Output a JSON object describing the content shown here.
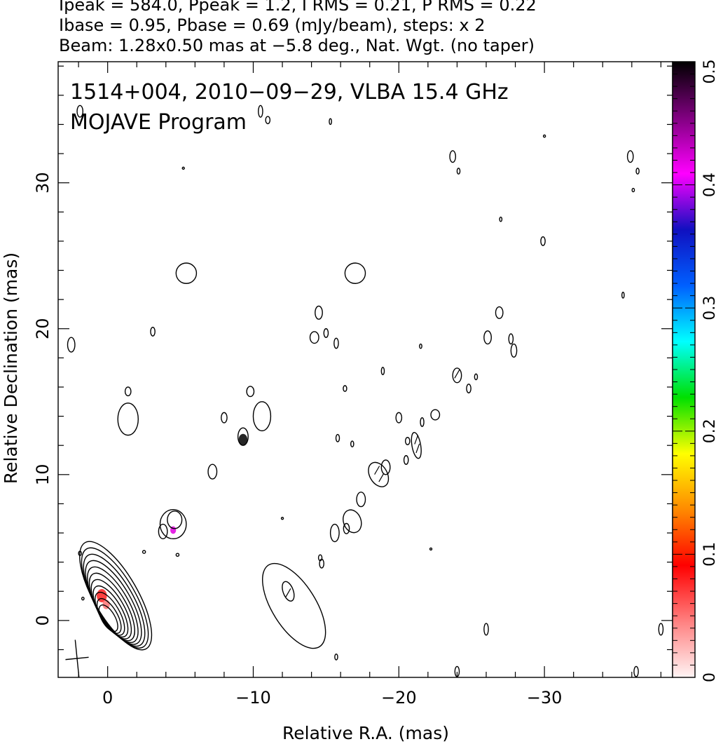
{
  "header": {
    "line1": "Ipeak = 584.0, Ppeak = 1.2, I RMS = 0.21, P RMS = 0.22",
    "line2": "Ibase = 0.95, Pbase = 0.69 (mJy/beam), steps: x 2",
    "line3": "Beam: 1.28x0.50 mas at −5.8 deg., Nat. Wgt. (no taper)"
  },
  "chart_data": {
    "type": "heatmap",
    "title": "1514+004, 2010−09−29, VLBA 15.4 GHz",
    "subtitle": "MOJAVE Program",
    "xlabel": "Relative R.A. (mas)",
    "ylabel": "Relative Declination (mas)",
    "xlim": [
      3.4,
      -38.8
    ],
    "ylim": [
      -3.9,
      38.3
    ],
    "x_ticks": [
      0,
      -10,
      -20,
      -30
    ],
    "x_tick_labels": [
      "0",
      "−10",
      "−20",
      "−30"
    ],
    "y_ticks": [
      0,
      10,
      20,
      30
    ],
    "y_tick_labels": [
      "0",
      "10",
      "20",
      "30"
    ],
    "colorbar": {
      "min": 0,
      "max": 0.5,
      "ticks": [
        0,
        0.1,
        0.2,
        0.3,
        0.4,
        0.5
      ],
      "tick_labels": [
        "0",
        "0.1",
        "0.2",
        "0.3",
        "0.4",
        "0.5"
      ],
      "stops": [
        "#fff4f4",
        "#ff8080",
        "#ff0000",
        "#ff8a00",
        "#ffff00",
        "#00e000",
        "#00ffff",
        "#0060ff",
        "#1010c0",
        "#ff00ff",
        "#800080",
        "#000000"
      ]
    },
    "core": {
      "x": 0.0,
      "y": 0.0,
      "levels": 11,
      "pa_deg": -30
    },
    "features": [
      {
        "x": -12.8,
        "y": 1.0,
        "rx": 1.5,
        "ry": 3.3,
        "rot": -32
      },
      {
        "x": -12.4,
        "y": 2.0,
        "rx": 0.35,
        "ry": 0.7,
        "rot": -20
      },
      {
        "x": -4.6,
        "y": 6.9,
        "rx": 0.5,
        "ry": 0.6,
        "rot": 0
      },
      {
        "x": -4.5,
        "y": 6.6,
        "rx": 0.9,
        "ry": 1.0,
        "rot": 0
      },
      {
        "x": -3.8,
        "y": 6.1,
        "rx": 0.3,
        "ry": 0.5,
        "rot": 0
      },
      {
        "x": -7.2,
        "y": 10.2,
        "rx": 0.3,
        "ry": 0.5,
        "rot": 0
      },
      {
        "x": -9.3,
        "y": 12.6,
        "rx": 0.35,
        "ry": 0.6,
        "rot": 0
      },
      {
        "x": -10.6,
        "y": 14.0,
        "rx": 0.6,
        "ry": 1.0,
        "rot": 0
      },
      {
        "x": -9.8,
        "y": 15.7,
        "rx": 0.25,
        "ry": 0.35,
        "rot": 0
      },
      {
        "x": -8.0,
        "y": 13.9,
        "rx": 0.2,
        "ry": 0.35,
        "rot": 0
      },
      {
        "x": -1.4,
        "y": 13.8,
        "rx": 0.7,
        "ry": 1.1,
        "rot": 0
      },
      {
        "x": -1.4,
        "y": 15.7,
        "rx": 0.2,
        "ry": 0.3,
        "rot": 0
      },
      {
        "x": 2.5,
        "y": 18.9,
        "rx": 0.25,
        "ry": 0.5,
        "rot": 0
      },
      {
        "x": -3.1,
        "y": 19.8,
        "rx": 0.15,
        "ry": 0.3,
        "rot": 0
      },
      {
        "x": -5.4,
        "y": 23.8,
        "rx": 0.7,
        "ry": 0.7,
        "rot": 0
      },
      {
        "x": -17.0,
        "y": 23.8,
        "rx": 0.7,
        "ry": 0.7,
        "rot": 0
      },
      {
        "x": -14.5,
        "y": 21.1,
        "rx": 0.25,
        "ry": 0.45,
        "rot": 0
      },
      {
        "x": -14.2,
        "y": 19.4,
        "rx": 0.3,
        "ry": 0.4,
        "rot": 0
      },
      {
        "x": -15.0,
        "y": 19.7,
        "rx": 0.15,
        "ry": 0.3,
        "rot": 0
      },
      {
        "x": -15.7,
        "y": 19.0,
        "rx": 0.15,
        "ry": 0.35,
        "rot": 0
      },
      {
        "x": -16.3,
        "y": 15.9,
        "rx": 0.12,
        "ry": 0.2,
        "rot": 0
      },
      {
        "x": -15.8,
        "y": 12.5,
        "rx": 0.12,
        "ry": 0.25,
        "rot": 0
      },
      {
        "x": -16.8,
        "y": 12.1,
        "rx": 0.1,
        "ry": 0.2,
        "rot": 0
      },
      {
        "x": -17.4,
        "y": 8.3,
        "rx": 0.3,
        "ry": 0.5,
        "rot": 0
      },
      {
        "x": -16.8,
        "y": 6.8,
        "rx": 0.6,
        "ry": 0.8,
        "rot": -20
      },
      {
        "x": -16.4,
        "y": 6.3,
        "rx": 0.2,
        "ry": 0.35,
        "rot": 0
      },
      {
        "x": -15.6,
        "y": 6.0,
        "rx": 0.3,
        "ry": 0.6,
        "rot": 0
      },
      {
        "x": -14.6,
        "y": 4.3,
        "rx": 0.12,
        "ry": 0.2,
        "rot": 0
      },
      {
        "x": -14.7,
        "y": 3.9,
        "rx": 0.15,
        "ry": 0.3,
        "rot": 0
      },
      {
        "x": -18.6,
        "y": 10.0,
        "rx": 0.6,
        "ry": 0.9,
        "rot": -30
      },
      {
        "x": -19.1,
        "y": 10.5,
        "rx": 0.3,
        "ry": 0.5,
        "rot": 0
      },
      {
        "x": -20.0,
        "y": 13.9,
        "rx": 0.2,
        "ry": 0.35,
        "rot": 0
      },
      {
        "x": -20.6,
        "y": 12.3,
        "rx": 0.15,
        "ry": 0.25,
        "rot": 0
      },
      {
        "x": -21.2,
        "y": 12.0,
        "rx": 0.3,
        "ry": 0.9,
        "rot": -10
      },
      {
        "x": -21.6,
        "y": 13.6,
        "rx": 0.12,
        "ry": 0.3,
        "rot": 0
      },
      {
        "x": -20.5,
        "y": 11.0,
        "rx": 0.15,
        "ry": 0.3,
        "rot": 0
      },
      {
        "x": -22.5,
        "y": 14.1,
        "rx": 0.3,
        "ry": 0.35,
        "rot": 0
      },
      {
        "x": -24.0,
        "y": 16.8,
        "rx": 0.3,
        "ry": 0.5,
        "rot": 0
      },
      {
        "x": -24.8,
        "y": 15.9,
        "rx": 0.15,
        "ry": 0.3,
        "rot": 0
      },
      {
        "x": -25.3,
        "y": 16.7,
        "rx": 0.1,
        "ry": 0.2,
        "rot": 0
      },
      {
        "x": -26.1,
        "y": 19.4,
        "rx": 0.25,
        "ry": 0.45,
        "rot": 0
      },
      {
        "x": -26.9,
        "y": 21.1,
        "rx": 0.25,
        "ry": 0.4,
        "rot": 0
      },
      {
        "x": -27.7,
        "y": 19.3,
        "rx": 0.15,
        "ry": 0.35,
        "rot": 0
      },
      {
        "x": -27.9,
        "y": 18.5,
        "rx": 0.2,
        "ry": 0.45,
        "rot": 0
      },
      {
        "x": -21.5,
        "y": 18.8,
        "rx": 0.08,
        "ry": 0.15,
        "rot": 0
      },
      {
        "x": -18.9,
        "y": 17.1,
        "rx": 0.1,
        "ry": 0.25,
        "rot": 0
      },
      {
        "x": -23.7,
        "y": 31.8,
        "rx": 0.2,
        "ry": 0.4,
        "rot": 0
      },
      {
        "x": -24.1,
        "y": 30.8,
        "rx": 0.1,
        "ry": 0.2,
        "rot": 0
      },
      {
        "x": -27.0,
        "y": 27.5,
        "rx": 0.08,
        "ry": 0.15,
        "rot": 0
      },
      {
        "x": -29.9,
        "y": 26.0,
        "rx": 0.15,
        "ry": 0.3,
        "rot": 0
      },
      {
        "x": -35.9,
        "y": 31.8,
        "rx": 0.2,
        "ry": 0.4,
        "rot": 0
      },
      {
        "x": -36.4,
        "y": 30.8,
        "rx": 0.1,
        "ry": 0.2,
        "rot": 0
      },
      {
        "x": -36.1,
        "y": 29.5,
        "rx": 0.08,
        "ry": 0.12,
        "rot": 0
      },
      {
        "x": -35.4,
        "y": 22.3,
        "rx": 0.08,
        "ry": 0.2,
        "rot": 0
      },
      {
        "x": -30.0,
        "y": 33.2,
        "rx": 0.05,
        "ry": 0.08,
        "rot": 0
      },
      {
        "x": -26.0,
        "y": -0.6,
        "rx": 0.15,
        "ry": 0.4,
        "rot": 0
      },
      {
        "x": -38.0,
        "y": -0.6,
        "rx": 0.15,
        "ry": 0.4,
        "rot": 0
      },
      {
        "x": -24.0,
        "y": -3.5,
        "rx": 0.15,
        "ry": 0.35,
        "rot": 0
      },
      {
        "x": -36.3,
        "y": -3.5,
        "rx": 0.15,
        "ry": 0.35,
        "rot": 0
      },
      {
        "x": -15.7,
        "y": -2.5,
        "rx": 0.1,
        "ry": 0.2,
        "rot": 0
      },
      {
        "x": -11.0,
        "y": 34.3,
        "rx": 0.15,
        "ry": 0.25,
        "rot": 0
      },
      {
        "x": -10.5,
        "y": 34.9,
        "rx": 0.15,
        "ry": 0.4,
        "rot": 0
      },
      {
        "x": -15.3,
        "y": 34.2,
        "rx": 0.08,
        "ry": 0.2,
        "rot": 0
      },
      {
        "x": -5.2,
        "y": 31.0,
        "rx": 0.05,
        "ry": 0.07,
        "rot": 0
      },
      {
        "x": 1.9,
        "y": 34.9,
        "rx": 0.2,
        "ry": 0.4,
        "rot": 0
      },
      {
        "x": -12.0,
        "y": 7.0,
        "rx": 0.05,
        "ry": 0.05,
        "rot": 0
      },
      {
        "x": -22.2,
        "y": 4.9,
        "rx": 0.05,
        "ry": 0.05,
        "rot": 0
      },
      {
        "x": -2.5,
        "y": 4.7,
        "rx": 0.1,
        "ry": 0.1,
        "rot": 0
      },
      {
        "x": 1.9,
        "y": 4.6,
        "rx": 0.1,
        "ry": 0.15,
        "rot": 0
      },
      {
        "x": -4.8,
        "y": 4.5,
        "rx": 0.1,
        "ry": 0.1,
        "rot": 0
      },
      {
        "x": 1.7,
        "y": 1.5,
        "rx": 0.08,
        "ry": 0.1,
        "rot": 0
      }
    ],
    "pol_ticks": [
      {
        "x": -12.4,
        "y": 1.9,
        "rot": -60
      },
      {
        "x": -18.5,
        "y": 10.3,
        "rot": -60
      },
      {
        "x": -18.8,
        "y": 9.8,
        "rot": -60
      },
      {
        "x": -21.2,
        "y": 12.4,
        "rot": -70
      },
      {
        "x": -21.3,
        "y": 11.8,
        "rot": -70
      },
      {
        "x": -24.0,
        "y": 16.9,
        "rot": -60
      }
    ],
    "color_patches": [
      {
        "x": 0.4,
        "y": 1.7,
        "r": 0.35,
        "value": 0.08
      },
      {
        "x": 0.1,
        "y": 1.1,
        "r": 0.25,
        "value": 0.05
      },
      {
        "x": -4.5,
        "y": 6.2,
        "r": 0.2,
        "value": 0.42
      },
      {
        "x": -9.3,
        "y": 12.4,
        "r": 0.3,
        "value": 0.5
      }
    ],
    "beam": {
      "x": 2.1,
      "y": -2.6,
      "major": 1.28,
      "minor": 0.5,
      "pa_deg": -5.8
    }
  }
}
